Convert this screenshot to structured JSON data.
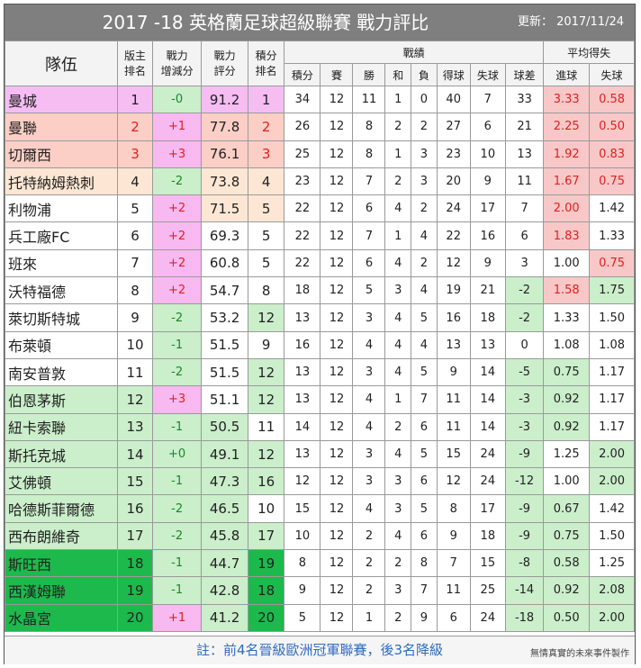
{
  "title": "2017 -18  英格蘭足球超級聯賽  戰力評比",
  "update": "更新： 2017/11/24",
  "headers": {
    "team": "隊伍",
    "host_rank": [
      "版主",
      "排名"
    ],
    "power_change": [
      "戰力",
      "增減分"
    ],
    "power_score": [
      "戰力",
      "評分"
    ],
    "points_rank": [
      "積分",
      "排名"
    ],
    "record": "戰績",
    "record_cols": [
      "積分",
      "賽",
      "勝",
      "和",
      "負",
      "得球",
      "失球",
      "球差"
    ],
    "average": "平均得失",
    "average_cols": [
      "進球",
      "失球"
    ]
  },
  "teams": [
    {
      "name": "曼城",
      "rank": "1",
      "change": "-0",
      "score": "91.2",
      "prank": "1",
      "pts": "34",
      "gp": "12",
      "w": "11",
      "d": "1",
      "l": "0",
      "gf": "40",
      "ga": "7",
      "gd": "33",
      "avgf": "3.33",
      "avga": "0.58"
    },
    {
      "name": "曼聯",
      "rank": "2",
      "change": "+1",
      "score": "77.8",
      "prank": "2",
      "pts": "26",
      "gp": "12",
      "w": "8",
      "d": "2",
      "l": "2",
      "gf": "27",
      "ga": "6",
      "gd": "21",
      "avgf": "2.25",
      "avga": "0.50"
    },
    {
      "name": "切爾西",
      "rank": "3",
      "change": "+3",
      "score": "76.1",
      "prank": "3",
      "pts": "25",
      "gp": "12",
      "w": "8",
      "d": "1",
      "l": "3",
      "gf": "23",
      "ga": "10",
      "gd": "13",
      "avgf": "1.92",
      "avga": "0.83"
    },
    {
      "name": "托特納姆熱刺",
      "rank": "4",
      "change": "-2",
      "score": "73.8",
      "prank": "4",
      "pts": "23",
      "gp": "12",
      "w": "7",
      "d": "2",
      "l": "3",
      "gf": "20",
      "ga": "9",
      "gd": "11",
      "avgf": "1.67",
      "avga": "0.75"
    },
    {
      "name": "利物浦",
      "rank": "5",
      "change": "+2",
      "score": "71.5",
      "prank": "5",
      "pts": "22",
      "gp": "12",
      "w": "6",
      "d": "4",
      "l": "2",
      "gf": "24",
      "ga": "17",
      "gd": "7",
      "avgf": "2.00",
      "avga": "1.42"
    },
    {
      "name": "兵工廠FC",
      "rank": "6",
      "change": "+2",
      "score": "69.3",
      "prank": "5",
      "pts": "22",
      "gp": "12",
      "w": "7",
      "d": "1",
      "l": "4",
      "gf": "22",
      "ga": "16",
      "gd": "6",
      "avgf": "1.83",
      "avga": "1.33"
    },
    {
      "name": "班來",
      "rank": "7",
      "change": "+2",
      "score": "60.8",
      "prank": "5",
      "pts": "22",
      "gp": "12",
      "w": "6",
      "d": "4",
      "l": "2",
      "gf": "12",
      "ga": "9",
      "gd": "3",
      "avgf": "1.00",
      "avga": "0.75"
    },
    {
      "name": "沃特福德",
      "rank": "8",
      "change": "+2",
      "score": "54.7",
      "prank": "8",
      "pts": "18",
      "gp": "12",
      "w": "5",
      "d": "3",
      "l": "4",
      "gf": "19",
      "ga": "21",
      "gd": "-2",
      "avgf": "1.58",
      "avga": "1.75"
    },
    {
      "name": "萊切斯特城",
      "rank": "9",
      "change": "-2",
      "score": "53.2",
      "prank": "12",
      "pts": "13",
      "gp": "12",
      "w": "3",
      "d": "4",
      "l": "5",
      "gf": "16",
      "ga": "18",
      "gd": "-2",
      "avgf": "1.33",
      "avga": "1.50"
    },
    {
      "name": "布萊頓",
      "rank": "10",
      "change": "-1",
      "score": "51.5",
      "prank": "9",
      "pts": "16",
      "gp": "12",
      "w": "4",
      "d": "4",
      "l": "4",
      "gf": "13",
      "ga": "13",
      "gd": "0",
      "avgf": "1.08",
      "avga": "1.08"
    },
    {
      "name": "南安普敦",
      "rank": "11",
      "change": "-2",
      "score": "51.5",
      "prank": "12",
      "pts": "13",
      "gp": "12",
      "w": "3",
      "d": "4",
      "l": "5",
      "gf": "9",
      "ga": "14",
      "gd": "-5",
      "avgf": "0.75",
      "avga": "1.17"
    },
    {
      "name": "伯恩茅斯",
      "rank": "12",
      "change": "+3",
      "score": "51.1",
      "prank": "12",
      "pts": "13",
      "gp": "12",
      "w": "4",
      "d": "1",
      "l": "7",
      "gf": "11",
      "ga": "14",
      "gd": "-3",
      "avgf": "0.92",
      "avga": "1.17"
    },
    {
      "name": "紐卡索聯",
      "rank": "13",
      "change": "-1",
      "score": "50.5",
      "prank": "11",
      "pts": "14",
      "gp": "12",
      "w": "4",
      "d": "2",
      "l": "6",
      "gf": "11",
      "ga": "14",
      "gd": "-3",
      "avgf": "0.92",
      "avga": "1.17"
    },
    {
      "name": "斯托克城",
      "rank": "14",
      "change": "+0",
      "score": "49.1",
      "prank": "12",
      "pts": "13",
      "gp": "12",
      "w": "3",
      "d": "4",
      "l": "5",
      "gf": "15",
      "ga": "24",
      "gd": "-9",
      "avgf": "1.25",
      "avga": "2.00"
    },
    {
      "name": "艾佛頓",
      "rank": "15",
      "change": "-1",
      "score": "47.3",
      "prank": "16",
      "pts": "12",
      "gp": "12",
      "w": "3",
      "d": "3",
      "l": "6",
      "gf": "12",
      "ga": "24",
      "gd": "-12",
      "avgf": "1.00",
      "avga": "2.00"
    },
    {
      "name": "哈德斯菲爾德",
      "rank": "16",
      "change": "-2",
      "score": "46.5",
      "prank": "10",
      "pts": "15",
      "gp": "12",
      "w": "4",
      "d": "3",
      "l": "5",
      "gf": "8",
      "ga": "17",
      "gd": "-9",
      "avgf": "0.67",
      "avga": "1.42"
    },
    {
      "name": "西布朗維奇",
      "rank": "17",
      "change": "-2",
      "score": "45.8",
      "prank": "17",
      "pts": "10",
      "gp": "12",
      "w": "2",
      "d": "4",
      "l": "6",
      "gf": "9",
      "ga": "18",
      "gd": "-9",
      "avgf": "0.75",
      "avga": "1.50"
    },
    {
      "name": "斯旺西",
      "rank": "18",
      "change": "-1",
      "score": "44.7",
      "prank": "19",
      "pts": "8",
      "gp": "12",
      "w": "2",
      "d": "2",
      "l": "8",
      "gf": "7",
      "ga": "15",
      "gd": "-8",
      "avgf": "0.58",
      "avga": "1.25"
    },
    {
      "name": "西漢姆聯",
      "rank": "19",
      "change": "-1",
      "score": "42.8",
      "prank": "18",
      "pts": "9",
      "gp": "12",
      "w": "2",
      "d": "3",
      "l": "7",
      "gf": "11",
      "ga": "25",
      "gd": "-14",
      "avgf": "0.92",
      "avga": "2.08"
    },
    {
      "name": "水晶宮",
      "rank": "20",
      "change": "+1",
      "score": "41.2",
      "prank": "20",
      "pts": "5",
      "gp": "12",
      "w": "1",
      "d": "2",
      "l": "9",
      "gf": "6",
      "ga": "24",
      "gd": "-18",
      "avgf": "0.50",
      "avga": "2.00"
    }
  ],
  "footer_note": "註：前4名晉級歐洲冠軍聯賽，後3名降級",
  "footer_credit": "無情真實的未來事件製作"
}
